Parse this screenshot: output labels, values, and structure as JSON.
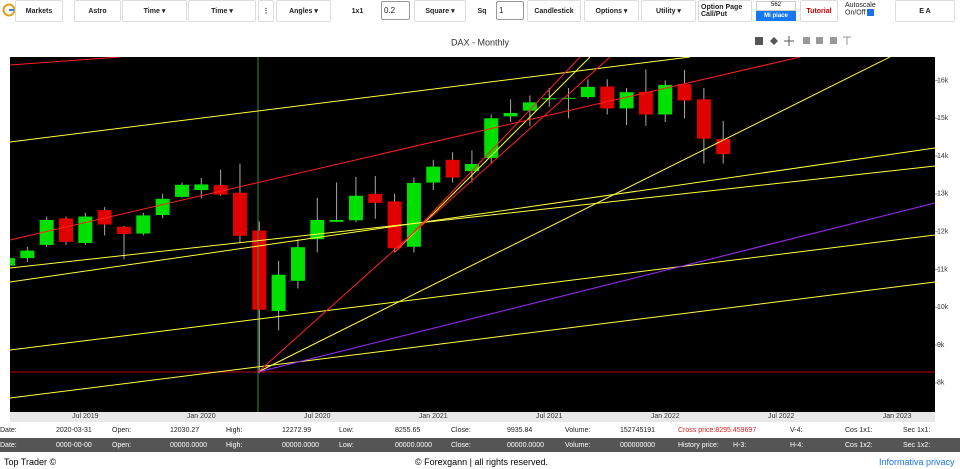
{
  "toolbar": {
    "markets": "Markets",
    "buttons": [
      "Astro",
      "Time ▾",
      "Time ▾",
      "⋮",
      "Angles ▾",
      "Square ▾",
      "Candlestick",
      "Options ▾",
      "Utility ▾"
    ],
    "label_1x1": "1x1",
    "input_1": "0.2",
    "label_sq": "Sq",
    "input_2": "1",
    "option_page": "Option Page",
    "call_put": "Call/Put",
    "like_count": "562",
    "like_button": "Mi piace",
    "tutorial": "Tutorial",
    "autoscale": "Autoscale",
    "on_off": "On/Off",
    "ea": "E A"
  },
  "chart_data": {
    "type": "candlestick",
    "title": "DAX - Monthly",
    "categories": [
      null,
      null,
      null,
      null,
      null,
      "Jul 2019",
      null,
      null,
      null,
      null,
      null,
      "Jan 2020",
      null,
      null,
      null,
      null,
      null,
      "Jul 2020",
      null,
      null,
      null,
      null,
      null,
      "Jan 2021",
      null,
      null,
      null,
      null,
      null,
      "Jul 2021",
      null,
      null,
      null,
      null,
      null,
      "Jan 2022",
      null,
      null,
      null,
      null,
      null,
      "Jul 2022",
      null,
      null,
      null,
      null,
      null,
      "Jan 2023"
    ],
    "open": [
      11100,
      11300,
      11650,
      12350,
      11700,
      12570,
      12130,
      11950,
      12440,
      12920,
      13100,
      13230,
      13030,
      12030.27,
      9900,
      10700,
      11800,
      12260,
      12300,
      13000,
      12800,
      11600,
      13300,
      13900,
      13600,
      13950,
      15050,
      15200,
      15500,
      15530,
      15560,
      15840,
      15260,
      15700,
      15100,
      15900,
      15500,
      14450,
      null,
      null,
      null,
      null,
      null,
      null,
      null,
      null,
      null,
      null
    ],
    "high": [
      11400,
      11600,
      12400,
      12400,
      12500,
      12650,
      12150,
      12500,
      13000,
      13300,
      13420,
      13640,
      13800,
      12272.99,
      11230,
      11800,
      12900,
      13300,
      13450,
      13470,
      13000,
      13430,
      13900,
      14100,
      14150,
      15100,
      15500,
      15600,
      15800,
      15800,
      16030,
      16030,
      15800,
      16290,
      16000,
      16280,
      15800,
      14930,
      null,
      null,
      null,
      null,
      null,
      null,
      null,
      null,
      null,
      null
    ],
    "low": [
      10900,
      11200,
      11600,
      11650,
      11650,
      11900,
      11270,
      11900,
      12350,
      12900,
      12880,
      12950,
      11720,
      8255.65,
      9390,
      10500,
      11450,
      12250,
      12250,
      12340,
      11450,
      11450,
      13100,
      13300,
      13300,
      13800,
      14900,
      14800,
      15300,
      15000,
      15520,
      15100,
      14820,
      14800,
      14900,
      15000,
      13800,
      13800,
      null,
      null,
      null,
      null,
      null,
      null,
      null,
      null,
      null,
      null
    ],
    "close": [
      11300,
      11500,
      12310,
      11730,
      12400,
      12190,
      11940,
      12430,
      12870,
      13240,
      13250,
      12980,
      11890,
      9935.84,
      10860,
      11590,
      12310,
      12310,
      12950,
      12760,
      11560,
      13290,
      13720,
      13430,
      13790,
      15000,
      15140,
      15420,
      15530,
      15540,
      15830,
      15260,
      15690,
      15100,
      15880,
      15470,
      14460,
      14050,
      null,
      null,
      null,
      null,
      null,
      null,
      null,
      null,
      null,
      null
    ],
    "up_color": "#00e000",
    "down_color": "#e00000",
    "background": "#000000",
    "ylim": [
      7230,
      16620
    ],
    "yticks": [
      {
        "value": 8000,
        "label": "8k"
      },
      {
        "value": 9000,
        "label": "9k"
      },
      {
        "value": 10000,
        "label": "10k"
      },
      {
        "value": 11000,
        "label": "11k"
      },
      {
        "value": 12000,
        "label": "12k"
      },
      {
        "value": 13000,
        "label": "13k"
      },
      {
        "value": 14000,
        "label": "14k"
      },
      {
        "value": 15000,
        "label": "15k"
      },
      {
        "value": 16000,
        "label": "16k"
      }
    ]
  },
  "info_rows": [
    [
      "Date:",
      "2020-03-31",
      "Open:",
      "12030.27",
      "High:",
      "12272.99",
      "Low:",
      "8255.65",
      "Close:",
      "9935.84",
      "Volume:",
      "152745191",
      "Cross price:8295.459697",
      "V-4:",
      "Cos 1x1:",
      "Sec 1x1:"
    ],
    [
      "Date:",
      "0000-00-00",
      "Open:",
      "00000.0000",
      "High:",
      "00000.0000",
      "Low:",
      "00000.0000",
      "Close:",
      "00000.0000",
      "Volume:",
      "000000000",
      "History price:",
      "H-3:",
      "H-4:",
      "Cos 1x2:",
      "Sec 1x2:"
    ]
  ],
  "footer": {
    "left": "Top Trader ©",
    "center": "© Forexgann | all rights reserved.",
    "right": "Informativa privacy"
  }
}
